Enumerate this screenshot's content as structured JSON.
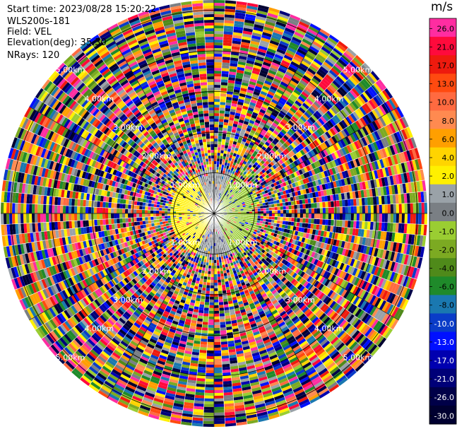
{
  "header": {
    "start_time": "Start time: 2023/08/28 15:20:22",
    "site": "WLS200s-181",
    "field": "Field: VEL",
    "elevation": "Elevation(deg): 35.30",
    "nrays": "NRays: 120"
  },
  "colorbar": {
    "unit": "m/s",
    "levels": [
      {
        "label": "26.0",
        "color": "#ff2da1"
      },
      {
        "label": "21.0",
        "color": "#ff0a3c"
      },
      {
        "label": "17.0",
        "color": "#ee1a0e"
      },
      {
        "label": "13.0",
        "color": "#ff4a10"
      },
      {
        "label": "10.0",
        "color": "#ff6a40"
      },
      {
        "label": "8.0",
        "color": "#ff8a50"
      },
      {
        "label": "6.0",
        "color": "#ff9f00"
      },
      {
        "label": "4.0",
        "color": "#ffd400"
      },
      {
        "label": "2.0",
        "color": "#fff000"
      },
      {
        "label": "1.0",
        "color": "#9aa2a8"
      },
      {
        "label": "0.0",
        "color": "#7a7f84"
      },
      {
        "label": "-1.0",
        "color": "#9acd32"
      },
      {
        "label": "-2.0",
        "color": "#7caa22"
      },
      {
        "label": "-4.0",
        "color": "#4f8a1a"
      },
      {
        "label": "-6.0",
        "color": "#1f8a2a"
      },
      {
        "label": "-8.0",
        "color": "#1a78b0"
      },
      {
        "label": "-10.0",
        "color": "#0a3cc8"
      },
      {
        "label": "-13.0",
        "color": "#0010ff"
      },
      {
        "label": "-17.0",
        "color": "#0000b0"
      },
      {
        "label": "-21.0",
        "color": "#000078"
      },
      {
        "label": "-26.0",
        "color": "#000048"
      },
      {
        "label": "-30.0",
        "color": "#000030"
      }
    ]
  },
  "chart_data": {
    "type": "heatmap",
    "projection": "polar PPI",
    "field": "VEL",
    "units": "m/s",
    "elevation_deg": 35.3,
    "nrays": 120,
    "range_rings_km": [
      1.0,
      2.0,
      3.0,
      4.0,
      5.0
    ],
    "ring_labels": [
      "1.00km",
      "2.00km",
      "3.00km",
      "4.00km",
      "5.00km"
    ],
    "note": "inner ~1 km shows coherent flow: negative (green) east side, positive (yellow) southwest; beyond is noise"
  }
}
